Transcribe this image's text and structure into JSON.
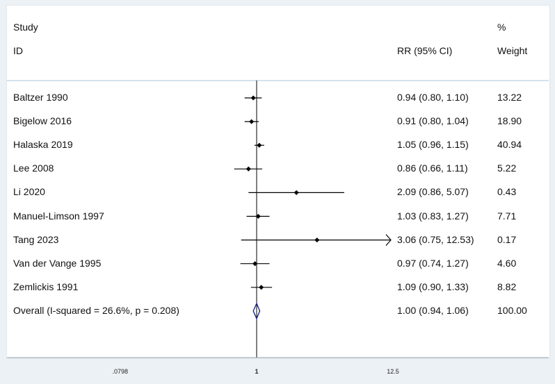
{
  "headers": {
    "study_line1": "Study",
    "study_line2": "ID",
    "rr": "RR (95% CI)",
    "weight_line1": "%",
    "weight_line2": "Weight"
  },
  "chart_data": {
    "type": "forest",
    "x_scale": "log",
    "reference_line": 1,
    "x_ticks": [
      {
        "value": 0.0798,
        "label": ".0798"
      },
      {
        "value": 1,
        "label": "1"
      },
      {
        "value": 12.5,
        "label": "12.5"
      }
    ],
    "studies": [
      {
        "label": "Baltzer 1990",
        "rr": 0.94,
        "lower": 0.8,
        "upper": 1.1,
        "ci_text": "0.94 (0.80, 1.10)",
        "weight": 13.22,
        "weight_text": "13.22"
      },
      {
        "label": "Bigelow 2016",
        "rr": 0.91,
        "lower": 0.8,
        "upper": 1.04,
        "ci_text": "0.91 (0.80, 1.04)",
        "weight": 18.9,
        "weight_text": "18.90"
      },
      {
        "label": "Halaska 2019",
        "rr": 1.05,
        "lower": 0.96,
        "upper": 1.15,
        "ci_text": "1.05 (0.96, 1.15)",
        "weight": 40.94,
        "weight_text": "40.94"
      },
      {
        "label": "Lee 2008",
        "rr": 0.86,
        "lower": 0.66,
        "upper": 1.11,
        "ci_text": "0.86 (0.66, 1.11)",
        "weight": 5.22,
        "weight_text": "5.22"
      },
      {
        "label": "Li 2020",
        "rr": 2.09,
        "lower": 0.86,
        "upper": 5.07,
        "ci_text": "2.09 (0.86, 5.07)",
        "weight": 0.43,
        "weight_text": "0.43"
      },
      {
        "label": "Manuel-Limson 1997",
        "rr": 1.03,
        "lower": 0.83,
        "upper": 1.27,
        "ci_text": "1.03 (0.83, 1.27)",
        "weight": 7.71,
        "weight_text": "7.71"
      },
      {
        "label": "Tang 2023",
        "rr": 3.06,
        "lower": 0.75,
        "upper": 12.53,
        "ci_text": "3.06 (0.75, 12.53)",
        "weight": 0.17,
        "weight_text": "0.17",
        "arrow_right": true
      },
      {
        "label": "Van der Vange 1995",
        "rr": 0.97,
        "lower": 0.74,
        "upper": 1.27,
        "ci_text": "0.97 (0.74, 1.27)",
        "weight": 4.6,
        "weight_text": "4.60"
      },
      {
        "label": "Zemlickis 1991",
        "rr": 1.09,
        "lower": 0.9,
        "upper": 1.33,
        "ci_text": "1.09 (0.90, 1.33)",
        "weight": 8.82,
        "weight_text": "8.82"
      }
    ],
    "overall": {
      "label": "Overall  (I-squared = 26.6%, p = 0.208)",
      "rr": 1.0,
      "lower": 0.94,
      "upper": 1.06,
      "ci_text": "1.00 (0.94, 1.06)",
      "weight": 100.0,
      "weight_text": "100.00"
    },
    "colors": {
      "diamond": "#1f2a8c",
      "lines": "#000000",
      "separator": "#a9c4d8"
    }
  }
}
